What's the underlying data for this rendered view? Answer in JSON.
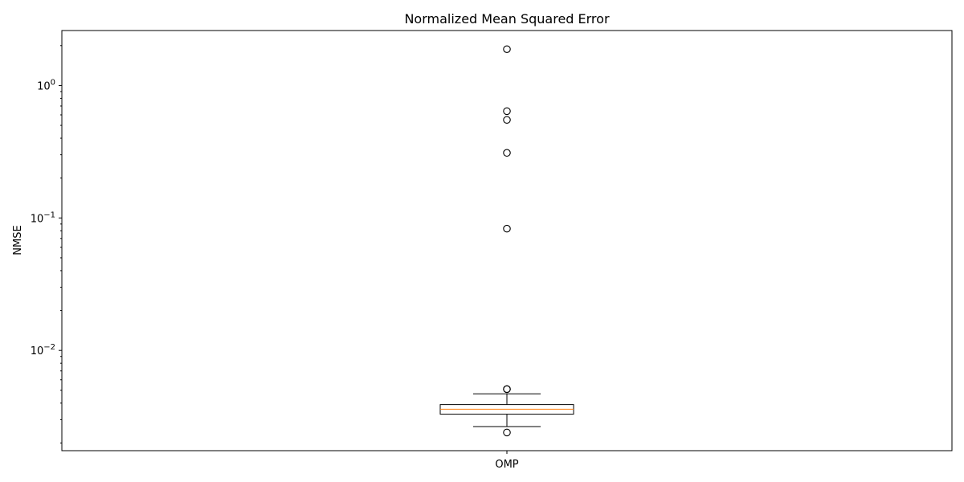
{
  "chart_data": {
    "type": "box",
    "title": "Normalized Mean Squared Error",
    "xlabel": "",
    "ylabel": "NMSE",
    "yscale": "log",
    "ylim": [
      0.00175,
      2.6
    ],
    "y_major_ticks": [
      {
        "value": 0.01,
        "base": "10",
        "exp": "−2"
      },
      {
        "value": 0.1,
        "base": "10",
        "exp": "−1"
      },
      {
        "value": 1,
        "base": "10",
        "exp": "0"
      }
    ],
    "categories": [
      "OMP"
    ],
    "boxes": [
      {
        "label": "OMP",
        "whisker_low": 0.00266,
        "q1": 0.0033,
        "median": 0.0036,
        "q3": 0.0039,
        "whisker_high": 0.0047,
        "outliers": [
          1.88,
          0.64,
          0.55,
          0.31,
          0.083,
          0.0051,
          0.0051,
          0.0024
        ]
      }
    ],
    "colors": {
      "box": "#000000",
      "median": "#ff7f0e",
      "outlier": "#000000"
    },
    "grid": false
  }
}
